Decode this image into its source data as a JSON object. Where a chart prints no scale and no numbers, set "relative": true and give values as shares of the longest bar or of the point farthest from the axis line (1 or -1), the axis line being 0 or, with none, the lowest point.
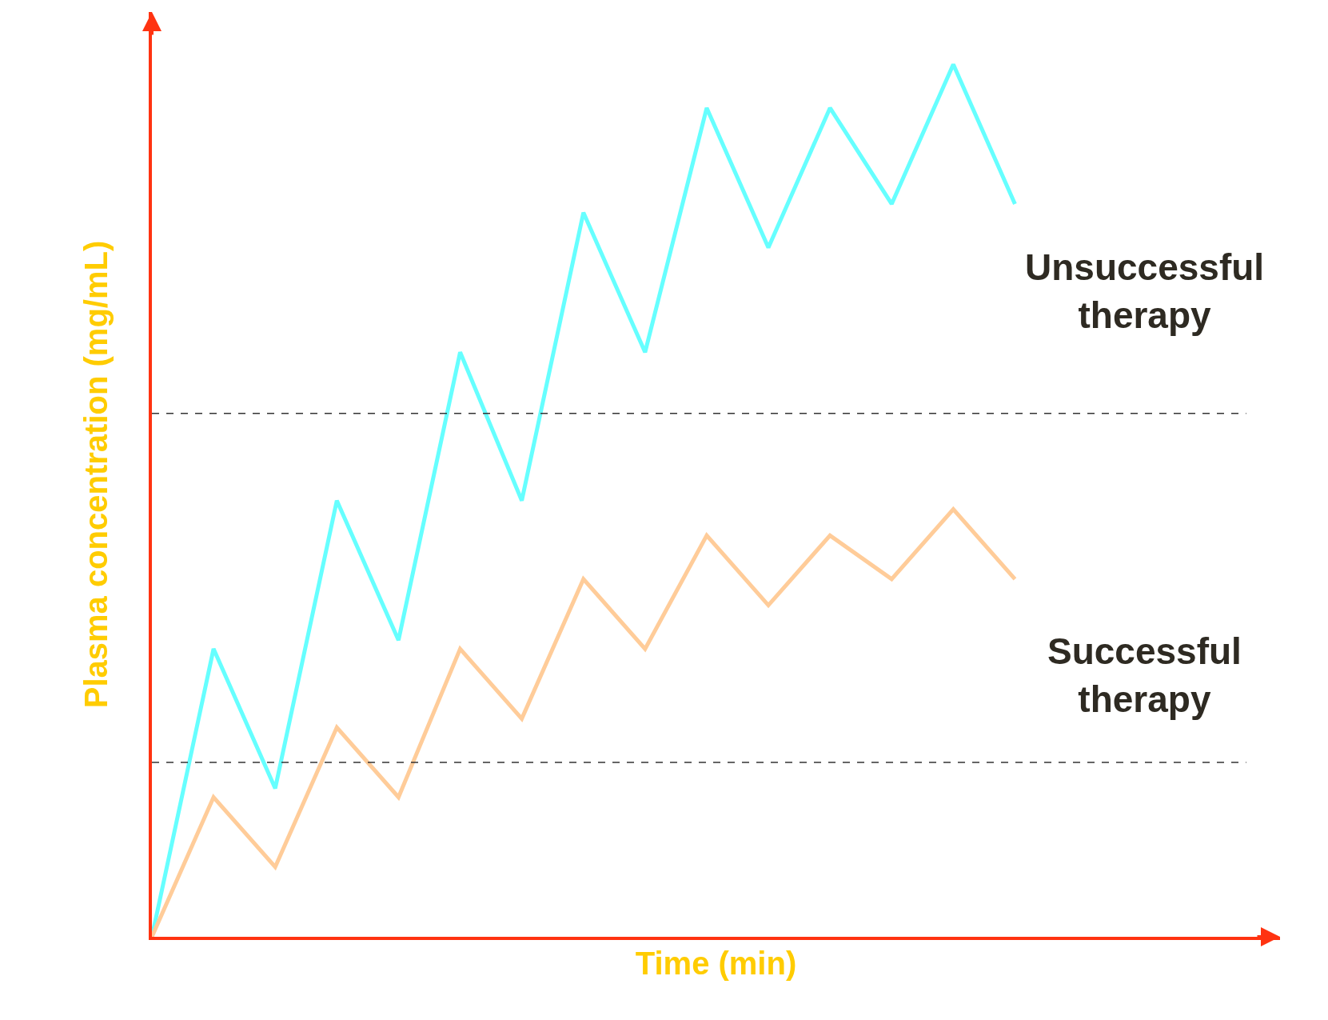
{
  "chart_data": {
    "type": "line",
    "relative": true,
    "xlabel": "Time (min)",
    "ylabel": "Plasma concentration (mg/mL)",
    "categories": [
      null,
      null,
      null,
      null,
      null,
      null,
      null,
      null,
      null,
      null,
      null,
      null,
      null,
      null,
      null
    ],
    "series": [
      {
        "name": "Unsuccessful therapy",
        "color": "#66ffff",
        "values": [
          0,
          0.33,
          0.17,
          0.5,
          0.34,
          0.67,
          0.5,
          0.83,
          0.67,
          0.95,
          0.79,
          0.95,
          0.84,
          1.0,
          0.84
        ]
      },
      {
        "name": "Successful therapy",
        "color": "#ffcc99",
        "values": [
          0,
          0.16,
          0.08,
          0.24,
          0.16,
          0.33,
          0.25,
          0.41,
          0.33,
          0.46,
          0.38,
          0.46,
          0.41,
          0.49,
          0.41
        ]
      }
    ],
    "ref_lines": [
      {
        "axis": "y",
        "value": 0.6,
        "color": "#333333",
        "line_style": "dashed"
      },
      {
        "axis": "y",
        "value": 0.2,
        "color": "#333333",
        "line_style": "dashed"
      }
    ],
    "legend": false,
    "marker": "none",
    "line_style": "solid"
  }
}
